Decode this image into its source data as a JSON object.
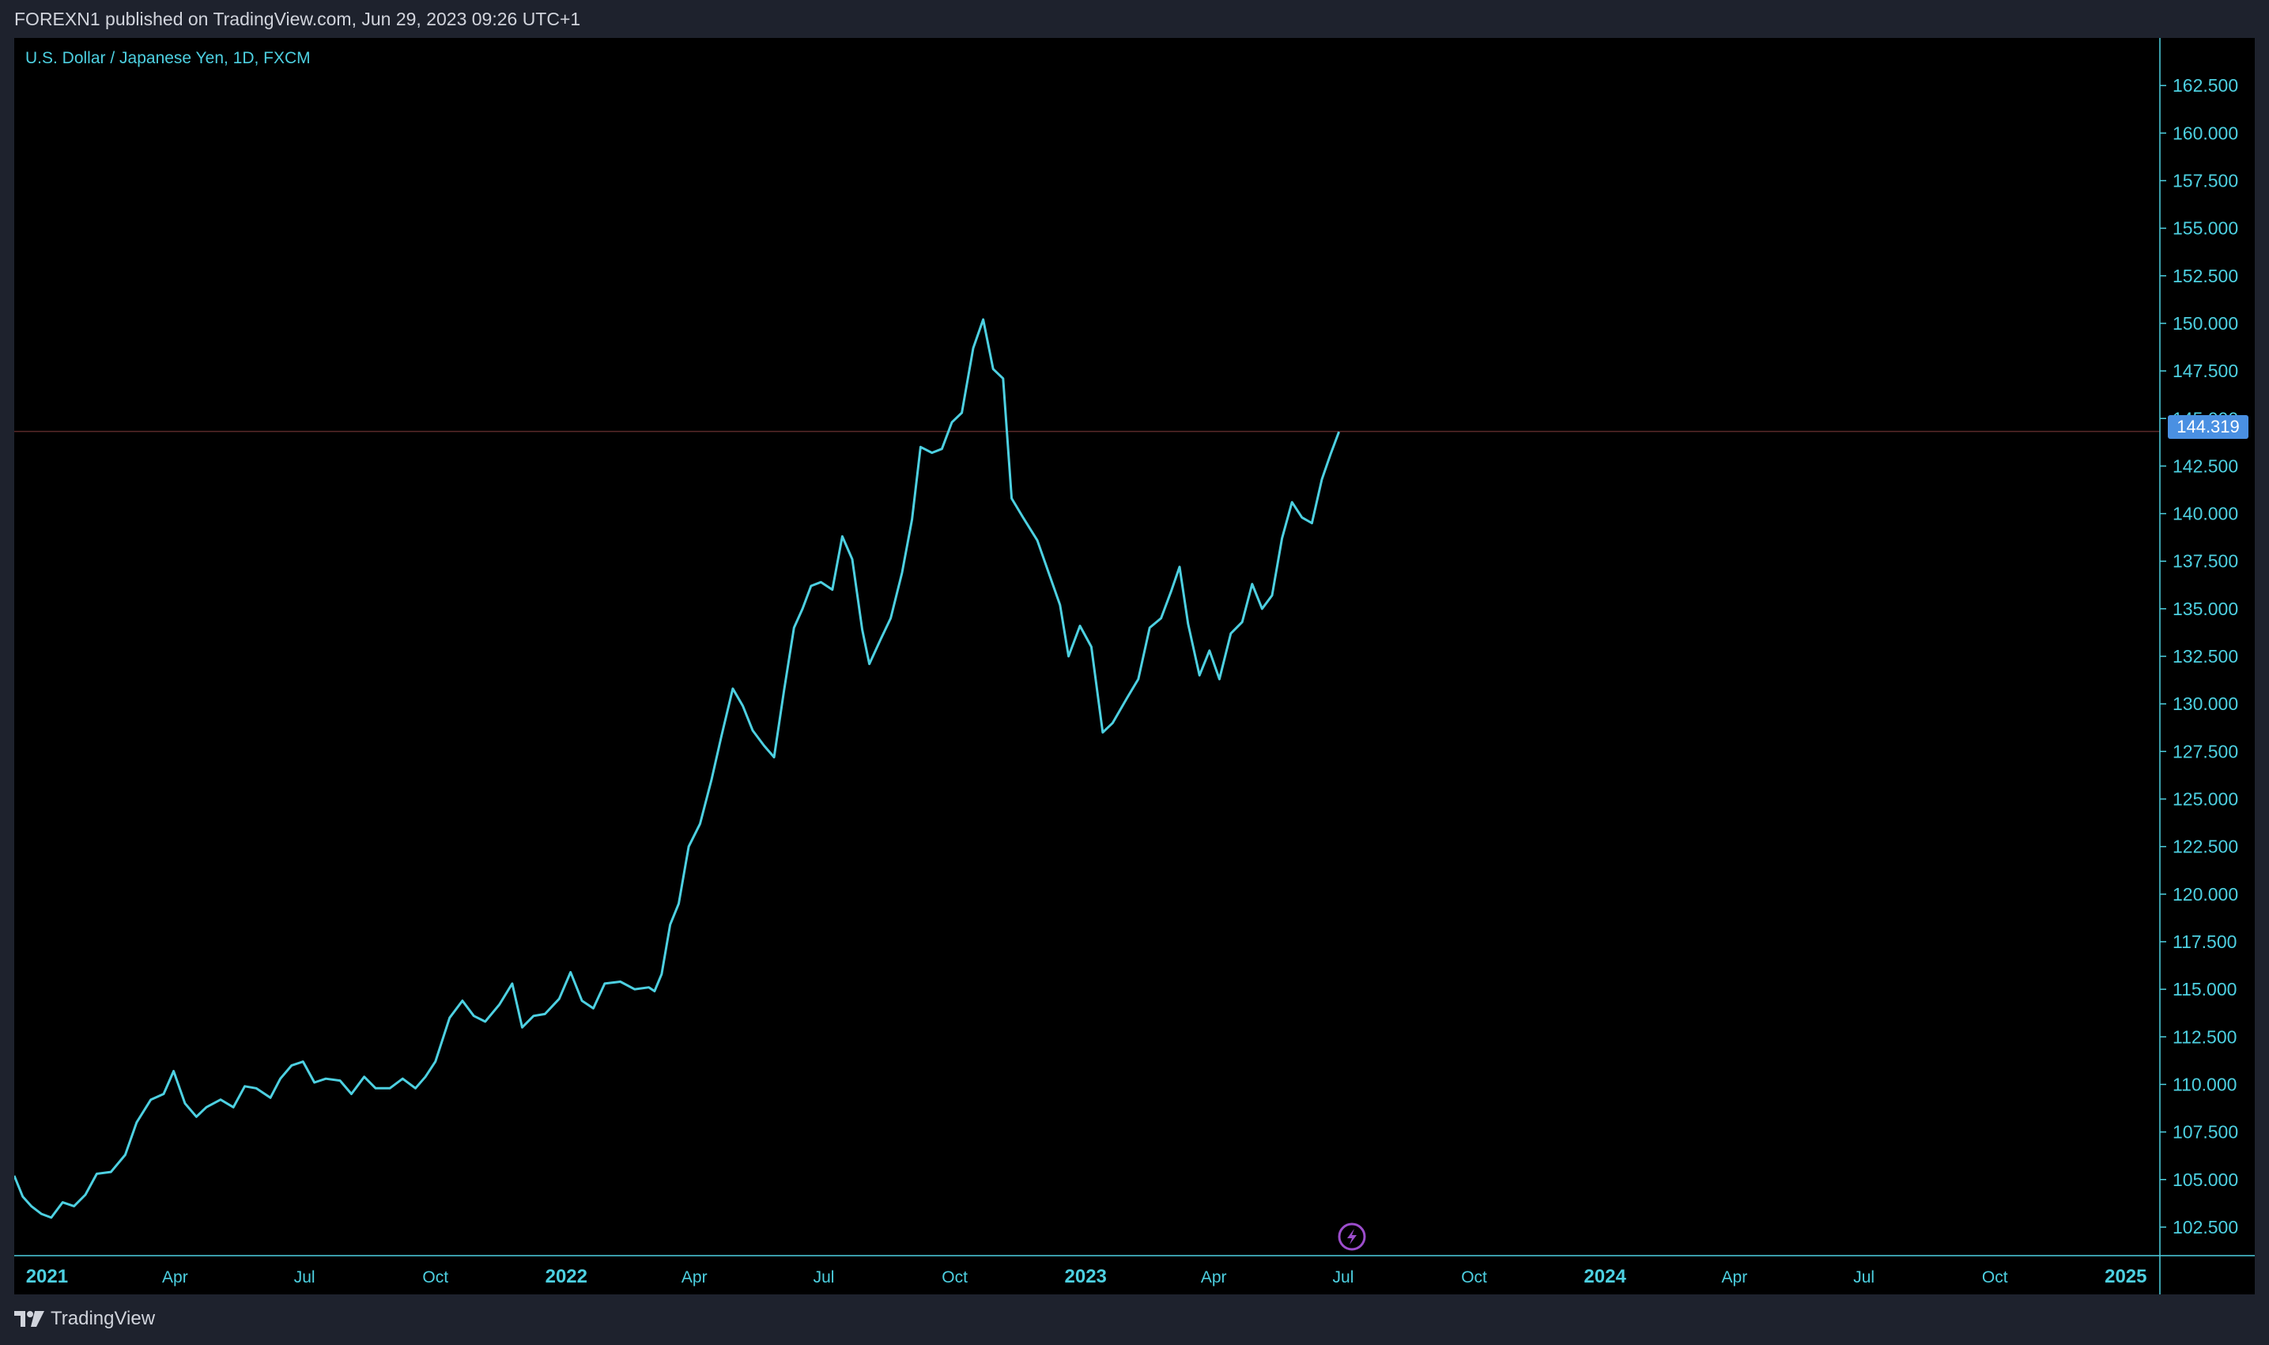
{
  "header": {
    "published": "FOREXN1 published on TradingView.com, Jun 29, 2023 09:26 UTC+1"
  },
  "footer": {
    "brand": "TradingView",
    "logo_icon": "tradingview-logo-icon"
  },
  "colors": {
    "background": "#000000",
    "frame": "#1e222d",
    "line": "#4dd0e1",
    "axis_text": "#4dd0e1",
    "current_price_bg": "#4a90e2",
    "price_line": "#5a2a2a",
    "alert_icon": "#9c4dcc"
  },
  "chart_data": {
    "type": "line",
    "title": "U.S. Dollar / Japanese Yen, 1D, FXCM",
    "current_price": 144.319,
    "current_price_label": "144.319",
    "ylim": [
      101,
      165
    ],
    "xlim": [
      "2020-12-09",
      "2025-01-25"
    ],
    "grid": false,
    "y_ticks": [
      "102.500",
      "105.000",
      "107.500",
      "110.000",
      "112.500",
      "115.000",
      "117.500",
      "120.000",
      "122.500",
      "125.000",
      "127.500",
      "130.000",
      "132.500",
      "135.000",
      "137.500",
      "140.000",
      "142.500",
      "145.000",
      "147.500",
      "150.000",
      "152.500",
      "155.000",
      "157.500",
      "160.000",
      "162.500"
    ],
    "x_ticks": [
      {
        "label": "2021",
        "date": "2021-01-01",
        "major": true
      },
      {
        "label": "Apr",
        "date": "2021-04-01",
        "major": false
      },
      {
        "label": "Jul",
        "date": "2021-07-01",
        "major": false
      },
      {
        "label": "Oct",
        "date": "2021-10-01",
        "major": false
      },
      {
        "label": "2022",
        "date": "2022-01-01",
        "major": true
      },
      {
        "label": "Apr",
        "date": "2022-04-01",
        "major": false
      },
      {
        "label": "Jul",
        "date": "2022-07-01",
        "major": false
      },
      {
        "label": "Oct",
        "date": "2022-10-01",
        "major": false
      },
      {
        "label": "2023",
        "date": "2023-01-01",
        "major": true
      },
      {
        "label": "Apr",
        "date": "2023-04-01",
        "major": false
      },
      {
        "label": "Jul",
        "date": "2023-07-01",
        "major": false
      },
      {
        "label": "Oct",
        "date": "2023-10-01",
        "major": false
      },
      {
        "label": "2024",
        "date": "2024-01-01",
        "major": true
      },
      {
        "label": "Apr",
        "date": "2024-04-01",
        "major": false
      },
      {
        "label": "Jul",
        "date": "2024-07-01",
        "major": false
      },
      {
        "label": "Oct",
        "date": "2024-10-01",
        "major": false
      },
      {
        "label": "2025",
        "date": "2025-01-01",
        "major": true
      }
    ],
    "series": [
      {
        "x": [
          "2020-12-09",
          "2020-12-15",
          "2020-12-21",
          "2020-12-28",
          "2021-01-04",
          "2021-01-12",
          "2021-01-20",
          "2021-01-28",
          "2021-02-05",
          "2021-02-15",
          "2021-02-25",
          "2021-03-05",
          "2021-03-15",
          "2021-03-24",
          "2021-03-31",
          "2021-04-08",
          "2021-04-16",
          "2021-04-23",
          "2021-05-03",
          "2021-05-12",
          "2021-05-20",
          "2021-05-28",
          "2021-06-07",
          "2021-06-14",
          "2021-06-22",
          "2021-06-30",
          "2021-07-08",
          "2021-07-16",
          "2021-07-26",
          "2021-08-03",
          "2021-08-12",
          "2021-08-20",
          "2021-08-30",
          "2021-09-08",
          "2021-09-17",
          "2021-09-24",
          "2021-10-01",
          "2021-10-11",
          "2021-10-20",
          "2021-10-28",
          "2021-11-05",
          "2021-11-15",
          "2021-11-24",
          "2021-12-01",
          "2021-12-09",
          "2021-12-17",
          "2021-12-27",
          "2022-01-04",
          "2022-01-12",
          "2022-01-20",
          "2022-01-28",
          "2022-02-08",
          "2022-02-18",
          "2022-02-28",
          "2022-03-04",
          "2022-03-09",
          "2022-03-15",
          "2022-03-21",
          "2022-03-28",
          "2022-04-05",
          "2022-04-13",
          "2022-04-20",
          "2022-04-28",
          "2022-05-05",
          "2022-05-12",
          "2022-05-20",
          "2022-05-27",
          "2022-06-03",
          "2022-06-10",
          "2022-06-16",
          "2022-06-22",
          "2022-06-29",
          "2022-07-07",
          "2022-07-14",
          "2022-07-21",
          "2022-07-28",
          "2022-08-02",
          "2022-08-10",
          "2022-08-17",
          "2022-08-25",
          "2022-09-01",
          "2022-09-07",
          "2022-09-15",
          "2022-09-22",
          "2022-09-29",
          "2022-10-06",
          "2022-10-14",
          "2022-10-21",
          "2022-10-28",
          "2022-11-04",
          "2022-11-10",
          "2022-11-18",
          "2022-11-28",
          "2022-12-06",
          "2022-12-14",
          "2022-12-20",
          "2022-12-28",
          "2023-01-05",
          "2023-01-13",
          "2023-01-20",
          "2023-01-30",
          "2023-02-07",
          "2023-02-15",
          "2023-02-23",
          "2023-03-02",
          "2023-03-08",
          "2023-03-14",
          "2023-03-22",
          "2023-03-29",
          "2023-04-05",
          "2023-04-13",
          "2023-04-21",
          "2023-04-28",
          "2023-05-05",
          "2023-05-12",
          "2023-05-19",
          "2023-05-26",
          "2023-06-02",
          "2023-06-09",
          "2023-06-16",
          "2023-06-22",
          "2023-06-28"
        ],
        "values": [
          105.2,
          104.1,
          103.6,
          103.2,
          103.0,
          103.8,
          103.6,
          104.2,
          105.3,
          105.4,
          106.3,
          108.0,
          109.2,
          109.5,
          110.7,
          109.0,
          108.3,
          108.8,
          109.2,
          108.8,
          109.9,
          109.8,
          109.3,
          110.3,
          111.0,
          111.2,
          110.1,
          110.3,
          110.2,
          109.5,
          110.4,
          109.8,
          109.8,
          110.3,
          109.8,
          110.4,
          111.2,
          113.5,
          114.4,
          113.6,
          113.3,
          114.2,
          115.3,
          113.0,
          113.6,
          113.7,
          114.5,
          115.9,
          114.4,
          114.0,
          115.3,
          115.4,
          115.0,
          115.1,
          114.9,
          115.8,
          118.4,
          119.5,
          122.5,
          123.7,
          126.0,
          128.3,
          130.8,
          129.9,
          128.6,
          127.8,
          127.2,
          130.7,
          134.0,
          135.0,
          136.2,
          136.4,
          136.0,
          138.8,
          137.6,
          133.9,
          132.1,
          133.4,
          134.5,
          136.9,
          139.7,
          143.5,
          143.2,
          143.4,
          144.8,
          145.3,
          148.7,
          150.2,
          147.6,
          147.1,
          140.8,
          139.8,
          138.6,
          136.9,
          135.2,
          132.5,
          134.1,
          133.0,
          128.5,
          129.0,
          130.3,
          131.3,
          134.0,
          134.5,
          135.9,
          137.2,
          134.2,
          131.5,
          132.8,
          131.3,
          133.7,
          134.3,
          136.3,
          135.0,
          135.7,
          138.7,
          140.6,
          139.8,
          139.5,
          141.8,
          143.1,
          144.3
        ]
      }
    ]
  }
}
